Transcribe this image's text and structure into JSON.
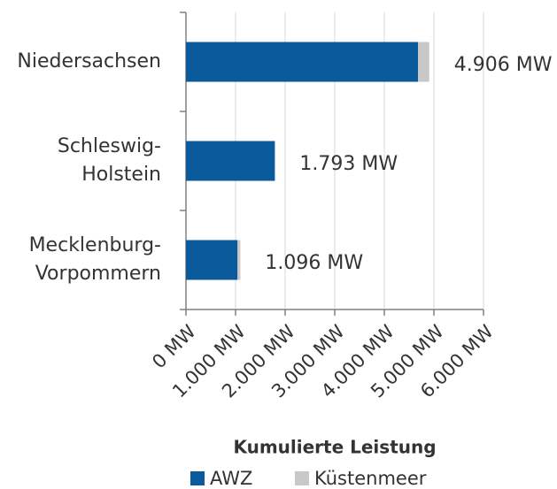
{
  "chart_data": {
    "type": "stacked-barh",
    "title": "Kumulierte Leistung",
    "categories": [
      [
        "Niedersachsen"
      ],
      [
        "Schleswig-",
        "Holstein"
      ],
      [
        "Mecklenburg-",
        "Vorpommern"
      ]
    ],
    "series": [
      {
        "name": "AWZ",
        "color": "#0b5a9c",
        "values": [
          4680,
          1793,
          1040
        ]
      },
      {
        "name": "Küstenmeer",
        "color": "#c8c8c8",
        "values": [
          226,
          0,
          56
        ]
      }
    ],
    "totals": [
      4906,
      1793,
      1096
    ],
    "total_labels": [
      "4.906 MW",
      "1.793 MW",
      "1.096 MW"
    ],
    "xlim": [
      0,
      6000
    ],
    "xticks": [
      {
        "value": 0,
        "label": "0 MW"
      },
      {
        "value": 1000,
        "label": "1.000 MW"
      },
      {
        "value": 2000,
        "label": "2.000 MW"
      },
      {
        "value": 3000,
        "label": "3.000 MW"
      },
      {
        "value": 4000,
        "label": "4.000 MW"
      },
      {
        "value": 5000,
        "label": "5.000 MW"
      },
      {
        "value": 6000,
        "label": "6.000 MW"
      }
    ],
    "grid": true
  }
}
